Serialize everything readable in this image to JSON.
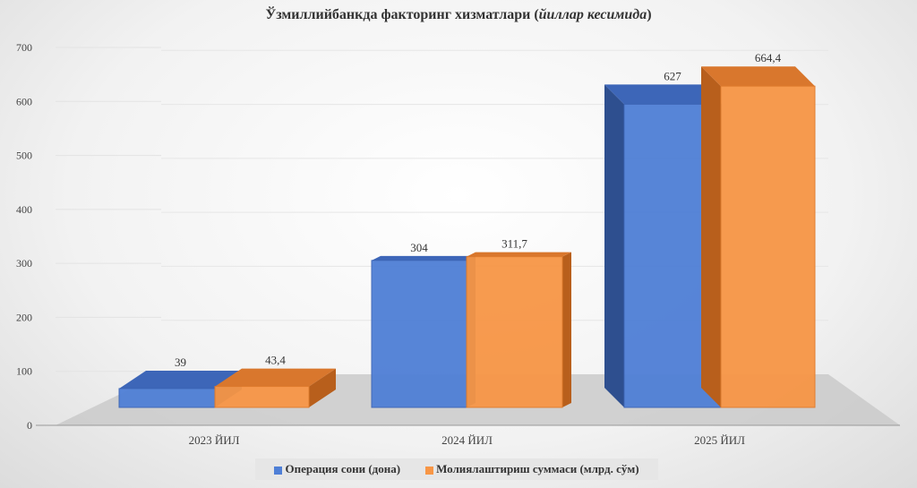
{
  "chart_data": {
    "type": "bar",
    "title": "Ўзмиллийбанкда факторинг хизматлари",
    "title_italic": "йиллар кесимида",
    "categories": [
      "2023 ЙИЛ",
      "2024 ЙИЛ",
      "2025 ЙИЛ"
    ],
    "series": [
      {
        "name": "Операция сони (дона)",
        "values": [
          39,
          304,
          627
        ],
        "labels": [
          "39",
          "304",
          "627"
        ],
        "color": "#4f7fd6"
      },
      {
        "name": "Молиялаштириш суммаси (млрд. сўм)",
        "values": [
          43.4,
          311.7,
          664.4
        ],
        "labels": [
          "43,4",
          "311,7",
          "664,4"
        ],
        "color": "#f79646"
      }
    ],
    "yticks": [
      "0",
      "100",
      "200",
      "300",
      "400",
      "500",
      "600",
      "700"
    ],
    "ylim": [
      0,
      700
    ],
    "legend": "bottom"
  }
}
